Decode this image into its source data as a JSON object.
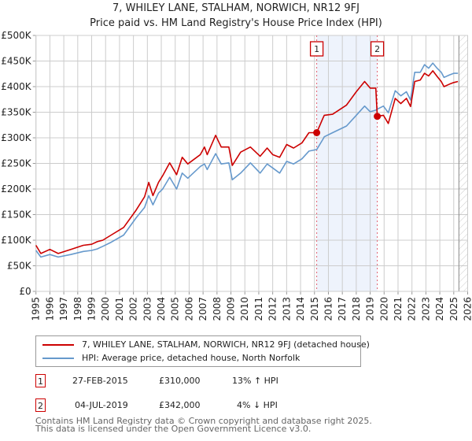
{
  "header": {
    "title": "7, WHILEY LANE, STALHAM, NORWICH, NR12 9FJ",
    "subtitle": "Price paid vs. HM Land Registry's House Price Index (HPI)"
  },
  "colors": {
    "property": "#cc0000",
    "hpi": "#6699cc",
    "grid": "#cccccc",
    "shade": "#eef3fc",
    "marker_line": "#e06070"
  },
  "chart_data": {
    "type": "line",
    "title": "7, WHILEY LANE, STALHAM, NORWICH, NR12 9FJ",
    "subtitle": "Price paid vs. HM Land Registry's House Price Index (HPI)",
    "xlabel": "",
    "ylabel": "",
    "xlim": [
      1995,
      2026
    ],
    "ylim": [
      0,
      500000
    ],
    "grid": true,
    "x_ticks": [
      "1995",
      "1996",
      "1997",
      "1998",
      "1999",
      "2000",
      "2001",
      "2002",
      "2003",
      "2004",
      "2005",
      "2006",
      "2007",
      "2008",
      "2009",
      "2010",
      "2011",
      "2012",
      "2013",
      "2014",
      "2015",
      "2016",
      "2017",
      "2018",
      "2019",
      "2020",
      "2021",
      "2022",
      "2023",
      "2024",
      "2025",
      "2026"
    ],
    "y_ticks": [
      {
        "value": 0,
        "label": "£0"
      },
      {
        "value": 50000,
        "label": "£50K"
      },
      {
        "value": 100000,
        "label": "£100K"
      },
      {
        "value": 150000,
        "label": "£150K"
      },
      {
        "value": 200000,
        "label": "£200K"
      },
      {
        "value": 250000,
        "label": "£250K"
      },
      {
        "value": 300000,
        "label": "£300K"
      },
      {
        "value": 350000,
        "label": "£350K"
      },
      {
        "value": 400000,
        "label": "£400K"
      },
      {
        "value": 450000,
        "label": "£450K"
      },
      {
        "value": 500000,
        "label": "£500K"
      }
    ],
    "shaded_range": [
      2015.16,
      2019.51
    ],
    "forecast_hatch_from": 2025.37,
    "legend_position": "below",
    "series": [
      {
        "name": "7, WHILEY LANE, STALHAM, NORWICH, NR12 9FJ (detached house)",
        "color": "#cc0000",
        "points": [
          [
            1995.0,
            90000
          ],
          [
            1995.35,
            74000
          ],
          [
            1996.0,
            82000
          ],
          [
            1996.6,
            74000
          ],
          [
            1997.5,
            82000
          ],
          [
            1998.4,
            90000
          ],
          [
            1999.0,
            92000
          ],
          [
            1999.4,
            97000
          ],
          [
            1999.8,
            100000
          ],
          [
            2000.4,
            110000
          ],
          [
            2001.3,
            125000
          ],
          [
            2002.2,
            159000
          ],
          [
            2002.8,
            185000
          ],
          [
            2003.1,
            213000
          ],
          [
            2003.4,
            187000
          ],
          [
            2003.8,
            213000
          ],
          [
            2004.1,
            226000
          ],
          [
            2004.6,
            251000
          ],
          [
            2005.1,
            228000
          ],
          [
            2005.5,
            262000
          ],
          [
            2005.9,
            249000
          ],
          [
            2006.8,
            267000
          ],
          [
            2007.1,
            282000
          ],
          [
            2007.3,
            267000
          ],
          [
            2007.9,
            305000
          ],
          [
            2008.3,
            282000
          ],
          [
            2008.85,
            282000
          ],
          [
            2009.1,
            246000
          ],
          [
            2009.7,
            272000
          ],
          [
            2010.4,
            282000
          ],
          [
            2011.1,
            264000
          ],
          [
            2011.6,
            280000
          ],
          [
            2012.0,
            267000
          ],
          [
            2012.5,
            262000
          ],
          [
            2013.0,
            287000
          ],
          [
            2013.5,
            280000
          ],
          [
            2014.1,
            290000
          ],
          [
            2014.6,
            310000
          ],
          [
            2015.16,
            310000
          ],
          [
            2015.6,
            338000
          ],
          [
            2015.7,
            344000
          ],
          [
            2016.3,
            346000
          ],
          [
            2017.3,
            364000
          ],
          [
            2018.0,
            390000
          ],
          [
            2018.6,
            410000
          ],
          [
            2019.0,
            397000
          ],
          [
            2019.4,
            397000
          ],
          [
            2019.51,
            342000
          ],
          [
            2019.95,
            344000
          ],
          [
            2020.3,
            328000
          ],
          [
            2020.8,
            377000
          ],
          [
            2021.2,
            367000
          ],
          [
            2021.6,
            377000
          ],
          [
            2021.9,
            361000
          ],
          [
            2022.2,
            410000
          ],
          [
            2022.6,
            413000
          ],
          [
            2022.9,
            426000
          ],
          [
            2023.2,
            421000
          ],
          [
            2023.5,
            431000
          ],
          [
            2023.8,
            420000
          ],
          [
            2024.1,
            410000
          ],
          [
            2024.3,
            400000
          ],
          [
            2024.7,
            405000
          ],
          [
            2025.0,
            408000
          ],
          [
            2025.3,
            410000
          ]
        ]
      },
      {
        "name": "HPI: Average price, detached house, North Norfolk",
        "color": "#6699cc",
        "points": [
          [
            1995.0,
            80000
          ],
          [
            1995.35,
            67000
          ],
          [
            1996.0,
            72000
          ],
          [
            1996.6,
            67000
          ],
          [
            1997.5,
            72000
          ],
          [
            1998.4,
            78000
          ],
          [
            1999.0,
            80000
          ],
          [
            1999.4,
            83000
          ],
          [
            1999.8,
            88000
          ],
          [
            2000.4,
            96000
          ],
          [
            2001.3,
            110000
          ],
          [
            2002.2,
            144000
          ],
          [
            2002.8,
            164000
          ],
          [
            2003.1,
            187000
          ],
          [
            2003.4,
            169000
          ],
          [
            2003.8,
            192000
          ],
          [
            2004.1,
            200000
          ],
          [
            2004.6,
            223000
          ],
          [
            2005.1,
            200000
          ],
          [
            2005.5,
            231000
          ],
          [
            2005.9,
            221000
          ],
          [
            2006.8,
            244000
          ],
          [
            2007.1,
            249000
          ],
          [
            2007.3,
            238000
          ],
          [
            2007.9,
            269000
          ],
          [
            2008.3,
            249000
          ],
          [
            2008.85,
            251000
          ],
          [
            2009.1,
            218000
          ],
          [
            2009.7,
            231000
          ],
          [
            2010.4,
            251000
          ],
          [
            2011.1,
            231000
          ],
          [
            2011.6,
            249000
          ],
          [
            2012.0,
            241000
          ],
          [
            2012.5,
            231000
          ],
          [
            2013.0,
            254000
          ],
          [
            2013.5,
            249000
          ],
          [
            2014.1,
            259000
          ],
          [
            2014.6,
            274000
          ],
          [
            2015.16,
            277000
          ],
          [
            2015.6,
            297000
          ],
          [
            2015.7,
            302000
          ],
          [
            2016.3,
            310000
          ],
          [
            2017.3,
            323000
          ],
          [
            2018.0,
            344000
          ],
          [
            2018.6,
            362000
          ],
          [
            2019.0,
            351000
          ],
          [
            2019.4,
            354000
          ],
          [
            2019.51,
            356000
          ],
          [
            2019.95,
            362000
          ],
          [
            2020.3,
            349000
          ],
          [
            2020.8,
            392000
          ],
          [
            2021.2,
            382000
          ],
          [
            2021.6,
            390000
          ],
          [
            2021.9,
            374000
          ],
          [
            2022.2,
            428000
          ],
          [
            2022.6,
            428000
          ],
          [
            2022.9,
            443000
          ],
          [
            2023.2,
            436000
          ],
          [
            2023.5,
            446000
          ],
          [
            2023.8,
            436000
          ],
          [
            2024.1,
            428000
          ],
          [
            2024.3,
            418000
          ],
          [
            2024.7,
            423000
          ],
          [
            2025.0,
            426000
          ],
          [
            2025.3,
            426000
          ]
        ]
      }
    ],
    "sales": [
      {
        "id": "1",
        "x": 2015.16,
        "value": 310000
      },
      {
        "id": "2",
        "x": 2019.51,
        "value": 342000
      }
    ]
  },
  "legend": {
    "items": [
      {
        "label": "7, WHILEY LANE, STALHAM, NORWICH, NR12 9FJ (detached house)",
        "color": "#cc0000"
      },
      {
        "label": "HPI: Average price, detached house, North Norfolk",
        "color": "#6699cc"
      }
    ]
  },
  "sales_table": [
    {
      "id": "1",
      "date": "27-FEB-2015",
      "price": "£310,000",
      "hpi": "13% ↑ HPI"
    },
    {
      "id": "2",
      "date": "04-JUL-2019",
      "price": "£342,000",
      "hpi": "4% ↓ HPI"
    }
  ],
  "footer": {
    "line1": "Contains HM Land Registry data © Crown copyright and database right 2025.",
    "line2": "This data is licensed under the Open Government Licence v3.0."
  }
}
